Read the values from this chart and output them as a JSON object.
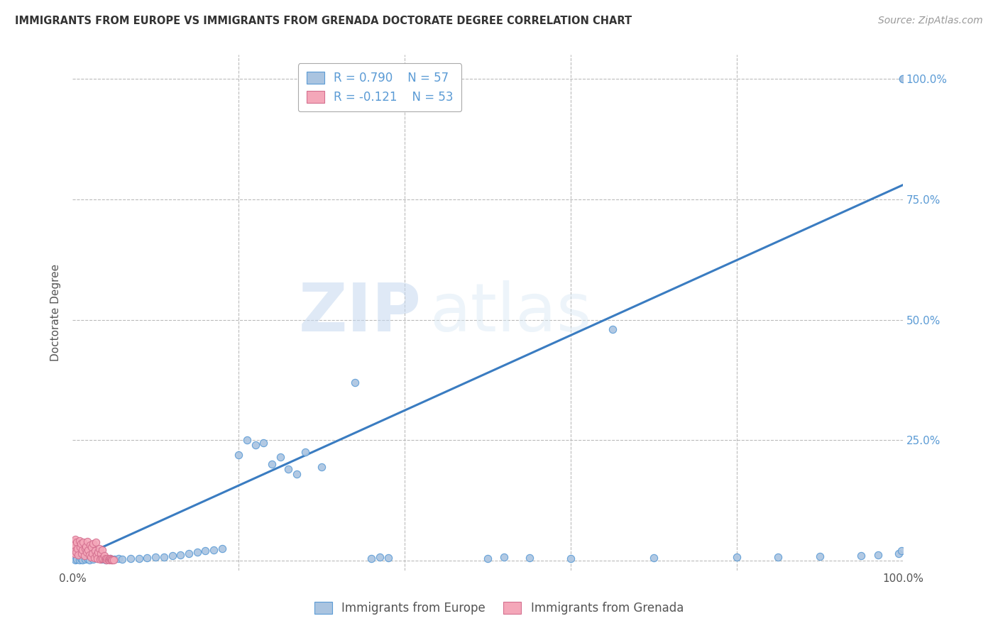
{
  "title": "IMMIGRANTS FROM EUROPE VS IMMIGRANTS FROM GRENADA DOCTORATE DEGREE CORRELATION CHART",
  "source": "Source: ZipAtlas.com",
  "ylabel": "Doctorate Degree",
  "legend_entries": [
    {
      "label": "Immigrants from Europe",
      "color": "#aac4e0",
      "edge_color": "#5b9bd5",
      "r": "0.790",
      "n": "57"
    },
    {
      "label": "Immigrants from Grenada",
      "color": "#f4a7b9",
      "edge_color": "#d47090",
      "r": "-0.121",
      "n": "53"
    }
  ],
  "trend_line_color": "#3a7cc1",
  "trend_x": [
    0,
    100
  ],
  "trend_y": [
    0,
    78
  ],
  "watermark_text": "ZIPatlas",
  "background_color": "#ffffff",
  "grid_color": "#bbbbbb",
  "xlim": [
    0,
    100
  ],
  "ylim": [
    -2,
    105
  ],
  "blue_scatter_x": [
    0.3,
    0.5,
    0.8,
    1.0,
    1.2,
    1.5,
    1.8,
    2.0,
    2.5,
    3.0,
    3.5,
    4.0,
    4.5,
    5.0,
    5.5,
    6.0,
    7.0,
    8.0,
    9.0,
    10.0,
    11.0,
    12.0,
    13.0,
    14.0,
    15.0,
    16.0,
    17.0,
    18.0,
    20.0,
    21.0,
    22.0,
    23.0,
    24.0,
    25.0,
    26.0,
    27.0,
    28.0,
    30.0,
    34.0,
    36.0,
    37.0,
    38.0,
    50.0,
    52.0,
    55.0,
    60.0,
    65.0,
    70.0,
    80.0,
    85.0,
    90.0,
    95.0,
    97.0,
    99.5,
    99.8,
    100.0,
    100.0
  ],
  "blue_scatter_y": [
    0.2,
    0.3,
    0.1,
    0.5,
    0.2,
    0.3,
    0.4,
    0.2,
    0.3,
    0.4,
    0.3,
    0.2,
    0.4,
    0.3,
    0.5,
    0.3,
    0.4,
    0.5,
    0.6,
    0.7,
    0.8,
    1.0,
    1.2,
    1.5,
    1.8,
    2.0,
    2.2,
    2.5,
    22.0,
    25.0,
    24.0,
    24.5,
    20.0,
    21.5,
    19.0,
    18.0,
    22.5,
    19.5,
    37.0,
    0.5,
    0.8,
    0.6,
    0.5,
    0.7,
    0.6,
    0.5,
    48.0,
    0.6,
    0.7,
    0.8,
    0.9,
    1.0,
    1.2,
    1.5,
    2.0,
    100.0,
    100.0
  ],
  "pink_scatter_x": [
    0.05,
    0.1,
    0.15,
    0.2,
    0.25,
    0.3,
    0.35,
    0.4,
    0.5,
    0.6,
    0.7,
    0.8,
    0.9,
    1.0,
    1.1,
    1.2,
    1.3,
    1.4,
    1.5,
    1.6,
    1.7,
    1.8,
    1.9,
    2.0,
    2.1,
    2.2,
    2.3,
    2.4,
    2.5,
    2.6,
    2.7,
    2.8,
    2.9,
    3.0,
    3.1,
    3.2,
    3.3,
    3.4,
    3.5,
    3.6,
    3.7,
    3.8,
    3.9,
    4.0,
    4.1,
    4.2,
    4.3,
    4.4,
    4.5,
    4.6,
    4.7,
    4.8,
    4.9
  ],
  "pink_scatter_y": [
    3.5,
    2.8,
    4.0,
    1.5,
    3.2,
    2.0,
    4.5,
    1.8,
    3.8,
    2.5,
    1.2,
    4.2,
    2.8,
    3.5,
    1.5,
    2.2,
    3.8,
    1.0,
    2.5,
    3.0,
    1.8,
    4.0,
    2.2,
    1.2,
    3.2,
    0.8,
    2.8,
    1.5,
    3.5,
    0.6,
    2.0,
    3.8,
    1.2,
    0.4,
    1.8,
    2.5,
    0.3,
    1.5,
    0.5,
    2.2,
    0.4,
    1.0,
    0.3,
    0.5,
    0.2,
    0.4,
    0.3,
    0.2,
    0.4,
    0.3,
    0.2,
    0.1,
    0.2
  ]
}
